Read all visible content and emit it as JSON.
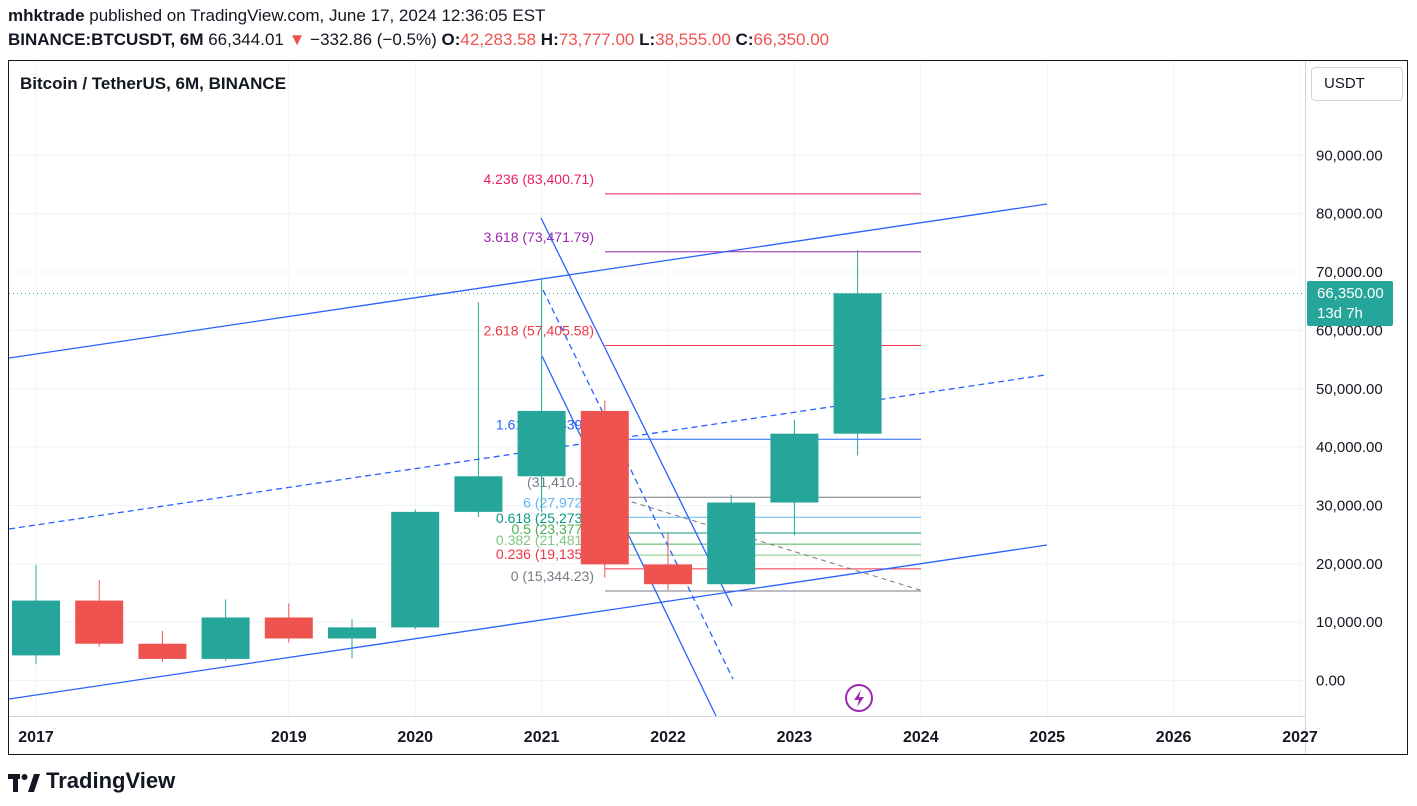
{
  "header": {
    "publisher": "mhktrade",
    "published_text": " published on TradingView.com, June 17, 2024 12:36:05 EST",
    "symbol": "BINANCE:BTCUSDT, 6M",
    "last": " 66,344.01",
    "arrow": " ▼",
    "change": " −332.86 (−0.5%)",
    "o_label": " O:",
    "o_value": "42,283.58",
    "h_label": " H:",
    "h_value": "73,777.00",
    "l_label": " L:",
    "l_value": "38,555.00",
    "c_label": " C:",
    "c_value": "66,350.00"
  },
  "chart_title": "Bitcoin / TetherUS, 6M, BINANCE",
  "currency_button": "USDT",
  "price_tag": {
    "price": "66,350.00",
    "countdown": "13d 7h"
  },
  "logo_text": "TradingView",
  "colors": {
    "up": "#26a69a",
    "down": "#ef5350",
    "trend": "#2962ff"
  },
  "chart_data": {
    "type": "candlestick",
    "title": "Bitcoin / TetherUS, 6M, BINANCE",
    "ylim": [
      -6000,
      96000
    ],
    "xlim": [
      2016.85,
      2027.35
    ],
    "y_ticks": [
      "90,000.00",
      "80,000.00",
      "70,000.00",
      "60,000.00",
      "50,000.00",
      "40,000.00",
      "30,000.00",
      "20,000.00",
      "10,000.00",
      "0.00"
    ],
    "y_tick_values": [
      90000,
      80000,
      70000,
      60000,
      50000,
      40000,
      30000,
      20000,
      10000,
      0
    ],
    "x_ticks": [
      "2017",
      "2019",
      "2020",
      "2021",
      "2022",
      "2023",
      "2024",
      "2025",
      "2026",
      "2027"
    ],
    "x_tick_values": [
      2017,
      2019,
      2020,
      2021,
      2022,
      2023,
      2024,
      2025,
      2026,
      2027
    ],
    "candles": [
      {
        "t": 2017.0,
        "o": 4300,
        "h": 19800,
        "l": 2800,
        "c": 13700
      },
      {
        "t": 2017.5,
        "o": 13700,
        "h": 17200,
        "l": 5800,
        "c": 6300
      },
      {
        "t": 2018.0,
        "o": 6300,
        "h": 8500,
        "l": 3200,
        "c": 3700
      },
      {
        "t": 2018.5,
        "o": 3700,
        "h": 13900,
        "l": 3400,
        "c": 10800
      },
      {
        "t": 2019.0,
        "o": 10800,
        "h": 13200,
        "l": 6500,
        "c": 7200
      },
      {
        "t": 2019.5,
        "o": 7200,
        "h": 10500,
        "l": 3800,
        "c": 9100
      },
      {
        "t": 2020.0,
        "o": 9100,
        "h": 29300,
        "l": 8800,
        "c": 28900
      },
      {
        "t": 2020.5,
        "o": 28900,
        "h": 64800,
        "l": 28000,
        "c": 35000
      },
      {
        "t": 2021.0,
        "o": 35000,
        "h": 69000,
        "l": 28800,
        "c": 46200
      },
      {
        "t": 2021.5,
        "o": 46200,
        "h": 48000,
        "l": 17600,
        "c": 19900
      },
      {
        "t": 2022.0,
        "o": 19900,
        "h": 25200,
        "l": 15500,
        "c": 16500
      },
      {
        "t": 2022.5,
        "o": 16500,
        "h": 31800,
        "l": 16500,
        "c": 30500
      },
      {
        "t": 2023.0,
        "o": 30500,
        "h": 44700,
        "l": 24900,
        "c": 42300
      },
      {
        "t": 2023.5,
        "o": 42300,
        "h": 73777,
        "l": 38555,
        "c": 66350
      }
    ],
    "last_price": 66350,
    "fib_levels": [
      {
        "ratio": "4.236",
        "label": "4.236 (83,400.71)",
        "value": 83400.71,
        "color": "#e91e63"
      },
      {
        "ratio": "3.618",
        "label": "3.618 (73,471.79)",
        "value": 73471.79,
        "color": "#9c27b0"
      },
      {
        "ratio": "2.618",
        "label": "2.618 (57,405.58)",
        "value": 57405.58,
        "color": "#f23645"
      },
      {
        "ratio": "1.618",
        "label": "1.618 (41,339.3",
        "value": 41339.3,
        "color": "#2962ff"
      },
      {
        "ratio": "1",
        "label": "(31,410.49",
        "value": 31410.49,
        "color": "#787b86"
      },
      {
        "ratio": "0.786",
        "label": "6 (27,972.2",
        "value": 27972.2,
        "color": "#64b5f6"
      },
      {
        "ratio": "0.618",
        "label": "0.618 (25,273.1",
        "value": 25273.1,
        "color": "#089981"
      },
      {
        "ratio": "0.5",
        "label": "0.5 (23,377.3",
        "value": 23377.3,
        "color": "#4caf50"
      },
      {
        "ratio": "0.382",
        "label": "0.382 (21,481.5",
        "value": 21481.5,
        "color": "#81c784"
      },
      {
        "ratio": "0.236",
        "label": "0.236 (19,135.8",
        "value": 19135.8,
        "color": "#f23645"
      },
      {
        "ratio": "0",
        "label": "0 (15,344.23)",
        "value": 15344.23,
        "color": "#787b86"
      }
    ]
  }
}
